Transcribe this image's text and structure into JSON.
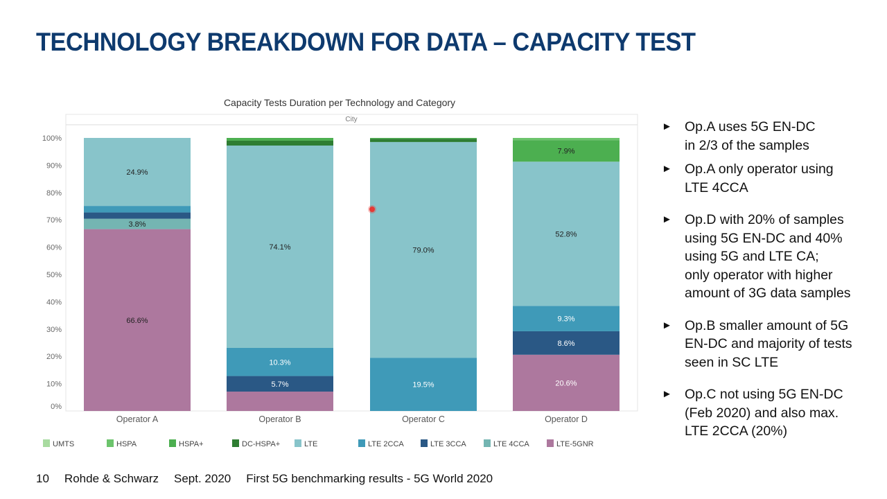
{
  "slide": {
    "title": "TECHNOLOGY BREAKDOWN FOR DATA – CAPACITY TEST",
    "footer": {
      "page": "10",
      "company": "Rohde & Schwarz",
      "date": "Sept. 2020",
      "event": "First 5G benchmarking results - 5G World 2020"
    },
    "bullets": [
      {
        "icon": "triangle-right-icon",
        "lines": [
          "Op.A uses 5G EN-DC",
          "in 2/3 of the samples"
        ]
      },
      {
        "icon": "triangle-right-icon",
        "lines": [
          "Op.A only operator using",
          "LTE 4CCA"
        ]
      },
      {
        "icon": "triangle-right-icon",
        "lines": [
          "Op.D with 20% of samples",
          "using 5G EN-DC and 40%",
          "using 5G and LTE CA;",
          "only operator with higher",
          "amount of 3G data samples"
        ]
      },
      {
        "icon": "triangle-right-icon",
        "lines": [
          "Op.B smaller amount of 5G",
          "EN-DC and majority of tests",
          "seen in SC LTE"
        ]
      },
      {
        "icon": "triangle-right-icon",
        "lines": [
          "Op.C not using 5G EN-DC",
          "(Feb 2020) and also max.",
          "LTE 2CCA (20%)"
        ]
      }
    ],
    "arrow_glyph": "►"
  },
  "chart_data": {
    "type": "bar",
    "stacked": true,
    "title": "Capacity Tests Duration per Technology and Category",
    "panel_label": "City",
    "categories": [
      "Operator A",
      "Operator B",
      "Operator C",
      "Operator D"
    ],
    "ylim": [
      0,
      100
    ],
    "yticks": [
      "0%",
      "10%",
      "20%",
      "30%",
      "40%",
      "50%",
      "60%",
      "70%",
      "80%",
      "90%",
      "100%"
    ],
    "legend_position": "bottom",
    "grid": false,
    "series": [
      {
        "name": "LTE-5GNR",
        "color": "#ad789e",
        "values": [
          66.6,
          7.1,
          0,
          20.6
        ]
      },
      {
        "name": "LTE 4CCA",
        "color": "#74b5b2",
        "values": [
          3.8,
          0,
          0,
          0
        ]
      },
      {
        "name": "LTE 3CCA",
        "color": "#2a5885",
        "values": [
          2.3,
          5.7,
          0,
          8.6
        ]
      },
      {
        "name": "LTE 2CCA",
        "color": "#3f9ab8",
        "values": [
          2.4,
          10.3,
          19.5,
          9.3
        ]
      },
      {
        "name": "LTE",
        "color": "#88c4ca",
        "values": [
          24.9,
          74.1,
          79.0,
          52.8
        ]
      },
      {
        "name": "DC-HSPA+",
        "color": "#2e7d32",
        "values": [
          0,
          1.8,
          1.2,
          0
        ]
      },
      {
        "name": "HSPA+",
        "color": "#4caf50",
        "values": [
          0,
          1.0,
          0.3,
          7.9
        ]
      },
      {
        "name": "HSPA",
        "color": "#6cc46c",
        "values": [
          0,
          0,
          0,
          0.8
        ]
      },
      {
        "name": "UMTS",
        "color": "#a8dba0",
        "values": [
          0,
          0,
          0,
          0
        ]
      }
    ],
    "data_labels": [
      [
        "66.6%",
        null,
        null,
        "20.6%"
      ],
      [
        "3.8%",
        null,
        null,
        null
      ],
      [
        null,
        "5.7%",
        null,
        "8.6%"
      ],
      [
        null,
        "10.3%",
        "19.5%",
        "9.3%"
      ],
      [
        "24.9%",
        "74.1%",
        "79.0%",
        "52.8%"
      ],
      [
        null,
        null,
        null,
        null
      ],
      [
        null,
        null,
        null,
        "7.9%"
      ],
      [
        null,
        null,
        null,
        null
      ],
      [
        null,
        null,
        null,
        null
      ]
    ],
    "legend_order": [
      "UMTS",
      "HSPA",
      "HSPA+",
      "DC-HSPA+",
      "LTE",
      "LTE 2CCA",
      "LTE 3CCA",
      "LTE 4CCA",
      "LTE-5GNR"
    ]
  }
}
